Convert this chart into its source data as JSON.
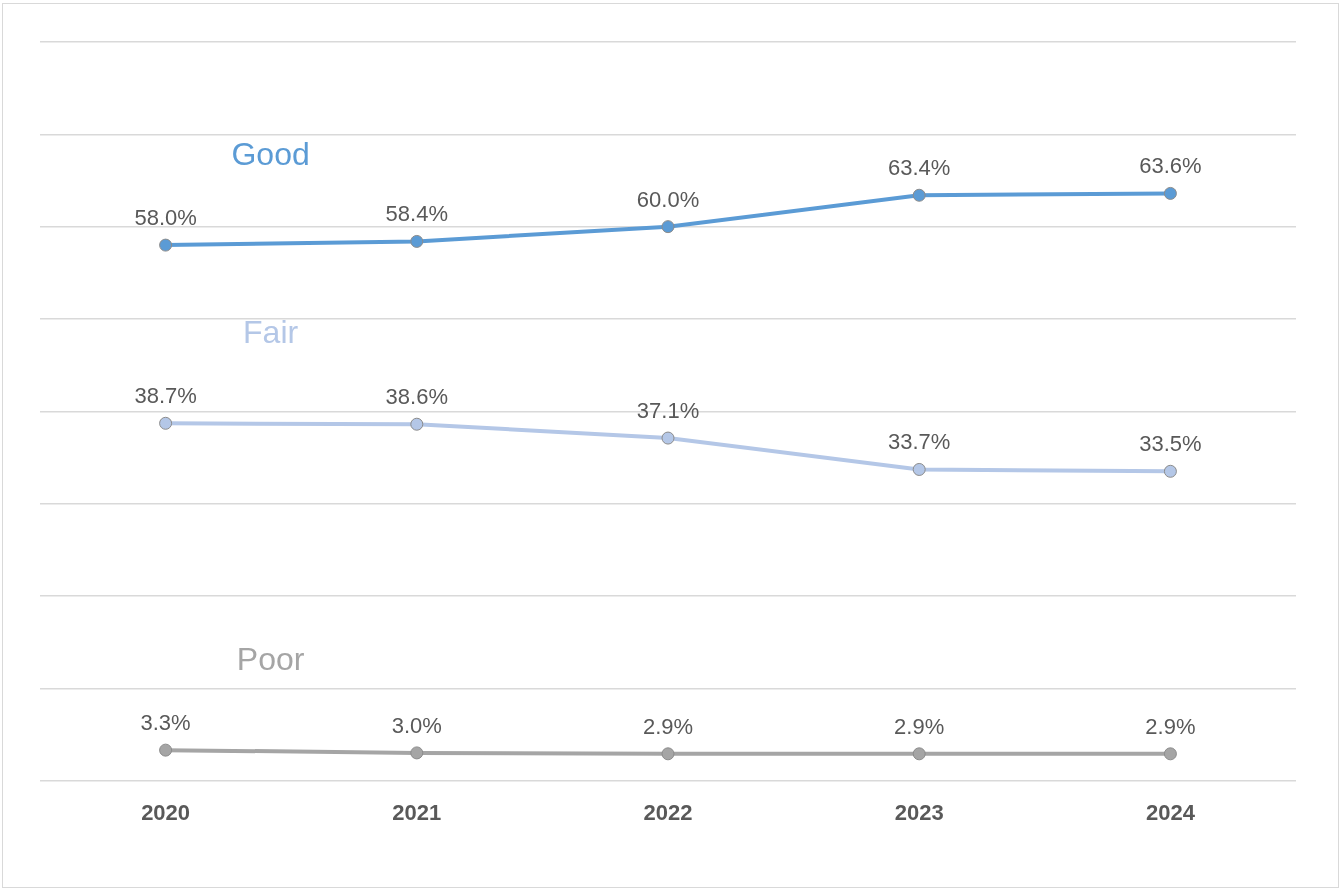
{
  "chart_data": {
    "type": "line",
    "categories": [
      "2020",
      "2021",
      "2022",
      "2023",
      "2024"
    ],
    "series": [
      {
        "name": "Good",
        "color": "#5b9bd5",
        "values": [
          58.0,
          58.4,
          60.0,
          63.4,
          63.6
        ],
        "value_labels": [
          "58.0%",
          "58.4%",
          "60.0%",
          "63.4%",
          "63.6%"
        ]
      },
      {
        "name": "Fair",
        "color": "#b4c7e7",
        "values": [
          38.7,
          38.6,
          37.1,
          33.7,
          33.5
        ],
        "value_labels": [
          "38.7%",
          "38.6%",
          "37.1%",
          "33.7%",
          "33.5%"
        ]
      },
      {
        "name": "Poor",
        "color": "#a5a5a5",
        "values": [
          3.3,
          3.0,
          2.9,
          2.9,
          2.9
        ],
        "value_labels": [
          "3.3%",
          "3.0%",
          "2.9%",
          "2.9%",
          "2.9%"
        ]
      }
    ],
    "ylim": [
      0,
      80
    ],
    "yticks": [
      {
        "value": 0,
        "label": null
      },
      {
        "value": 10,
        "label": null
      },
      {
        "value": 20,
        "label": null
      },
      {
        "value": 30,
        "label": null
      },
      {
        "value": 40,
        "label": null
      },
      {
        "value": 50,
        "label": null
      },
      {
        "value": 60,
        "label": null
      },
      {
        "value": 70,
        "label": null
      },
      {
        "value": 80,
        "label": null
      }
    ],
    "tick_labels": "x",
    "grid": "y",
    "legend": false,
    "marker": "circle",
    "line_style": "solid"
  }
}
